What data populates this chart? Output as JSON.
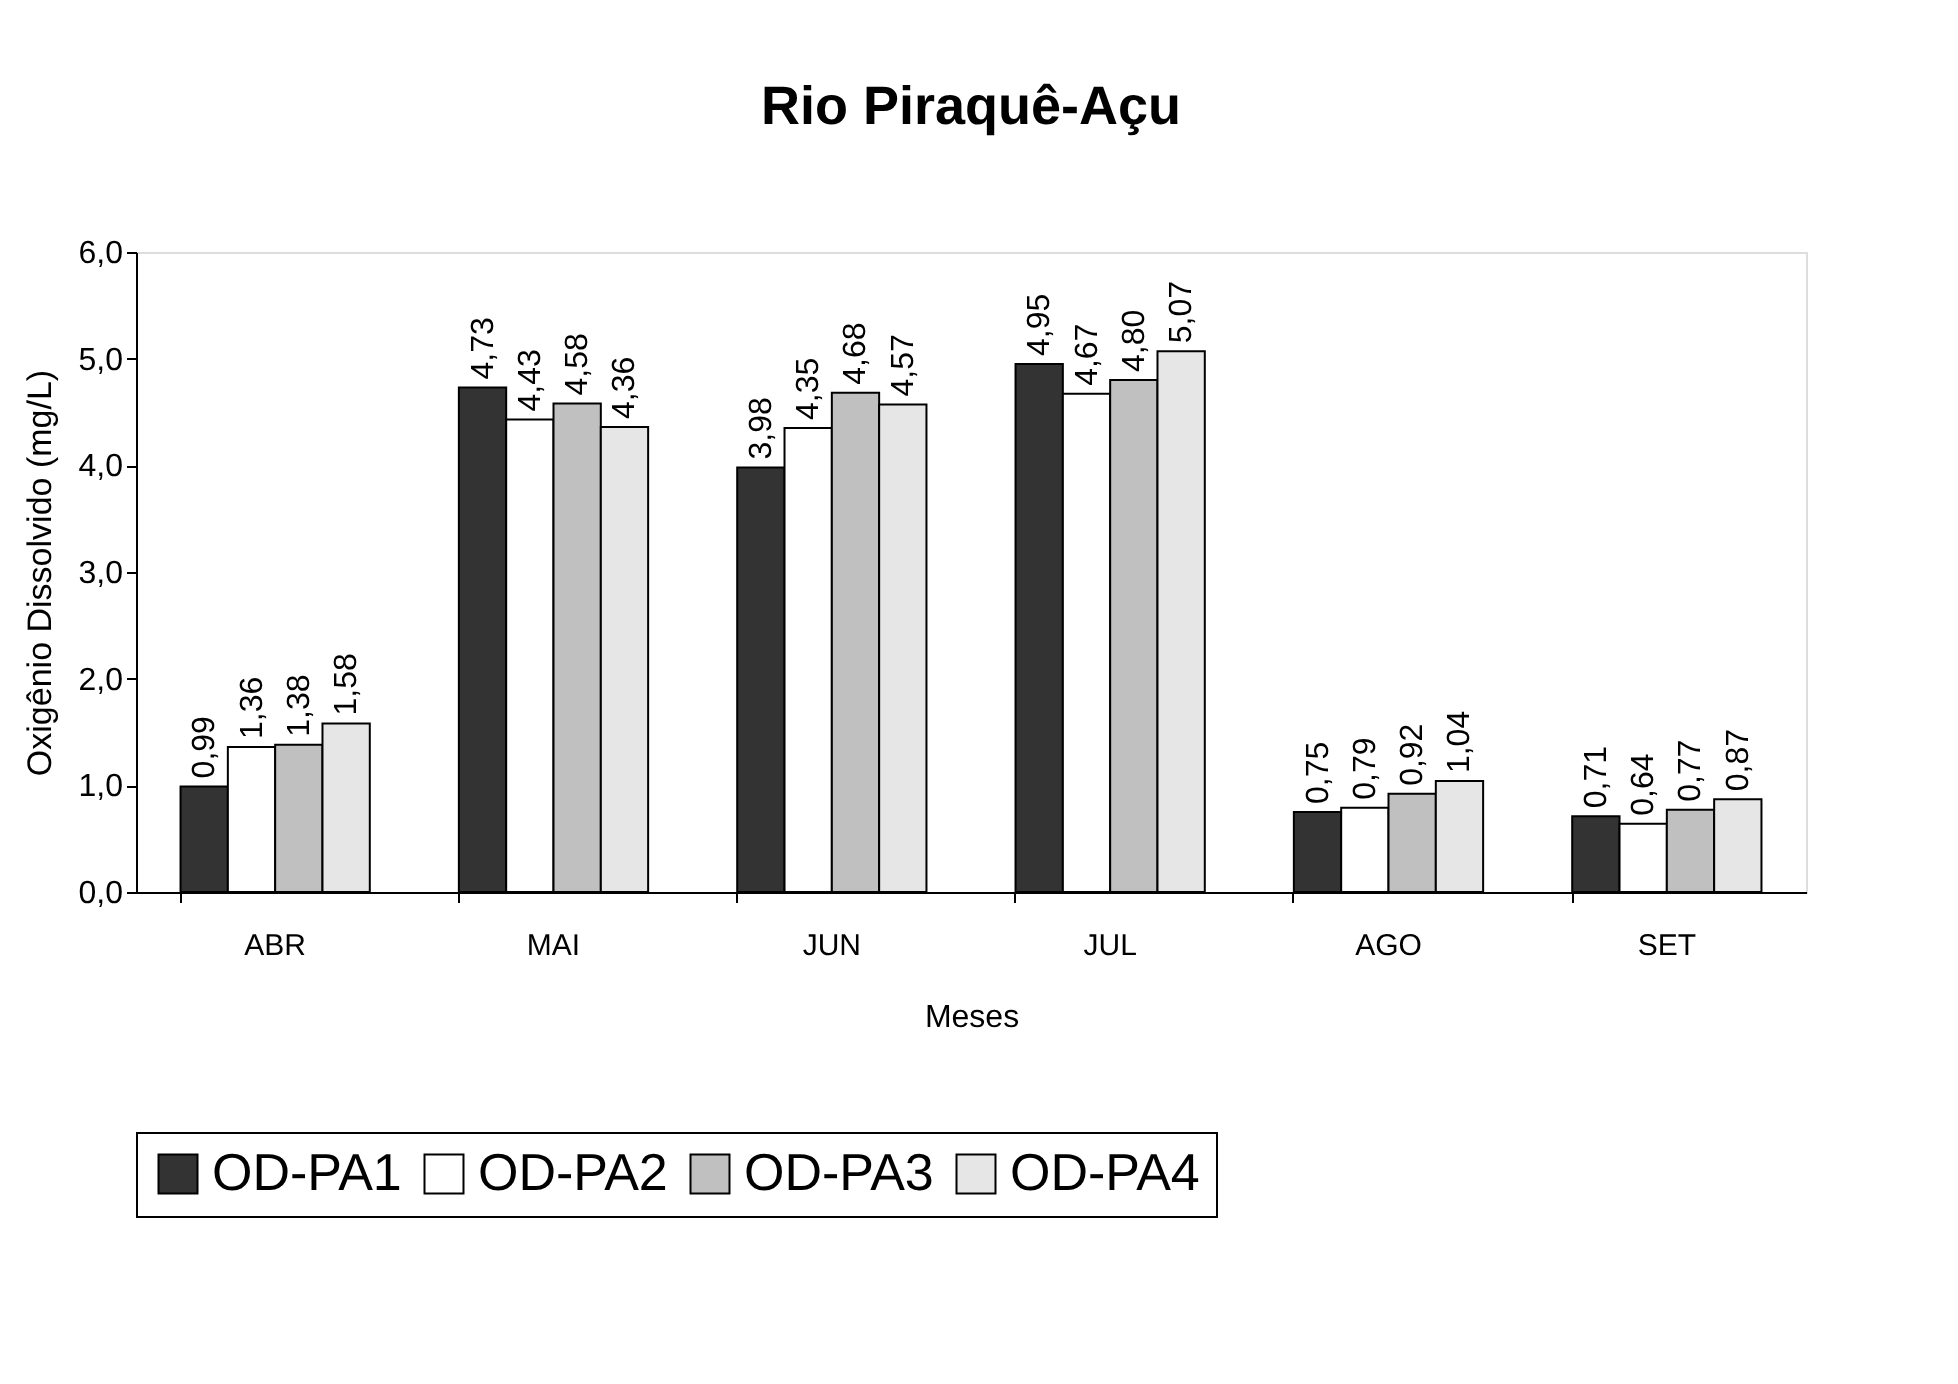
{
  "chart_data": {
    "type": "bar",
    "title": "Rio Piraquê-Açu",
    "xlabel": "Meses",
    "ylabel": "Oxigênio Dissolvido (mg/L)",
    "categories": [
      "ABR",
      "MAI",
      "JUN",
      "JUL",
      "AGO",
      "SET"
    ],
    "series": [
      {
        "name": "OD-PA1",
        "color": "#333333",
        "values": [
          0.99,
          4.73,
          3.98,
          4.95,
          0.75,
          0.71
        ],
        "value_labels": [
          "0,99",
          "4,73",
          "3,98",
          "4,95",
          "0,75",
          "0,71"
        ]
      },
      {
        "name": "OD-PA2",
        "color": "#ffffff",
        "values": [
          1.36,
          4.43,
          4.35,
          4.67,
          0.79,
          0.64
        ],
        "value_labels": [
          "1,36",
          "4,43",
          "4,35",
          "4,67",
          "0,79",
          "0,64"
        ]
      },
      {
        "name": "OD-PA3",
        "color": "#c0c0c0",
        "values": [
          1.38,
          4.58,
          4.68,
          4.8,
          0.92,
          0.77
        ],
        "value_labels": [
          "1,38",
          "4,58",
          "4,68",
          "4,80",
          "0,92",
          "0,77"
        ]
      },
      {
        "name": "OD-PA4",
        "color": "#e6e6e6",
        "values": [
          1.58,
          4.36,
          4.57,
          5.07,
          1.04,
          0.87
        ],
        "value_labels": [
          "1,58",
          "4,36",
          "4,57",
          "5,07",
          "1,04",
          "0,87"
        ]
      }
    ],
    "ylim": [
      0,
      6
    ],
    "yticks": [
      {
        "value": 0,
        "label": "0,0"
      },
      {
        "value": 1,
        "label": "1,0"
      },
      {
        "value": 2,
        "label": "2,0"
      },
      {
        "value": 3,
        "label": "3,0"
      },
      {
        "value": 4,
        "label": "4,0"
      },
      {
        "value": 5,
        "label": "5,0"
      },
      {
        "value": 6,
        "label": "6,0"
      }
    ],
    "grid": false,
    "legend": "bottom"
  }
}
